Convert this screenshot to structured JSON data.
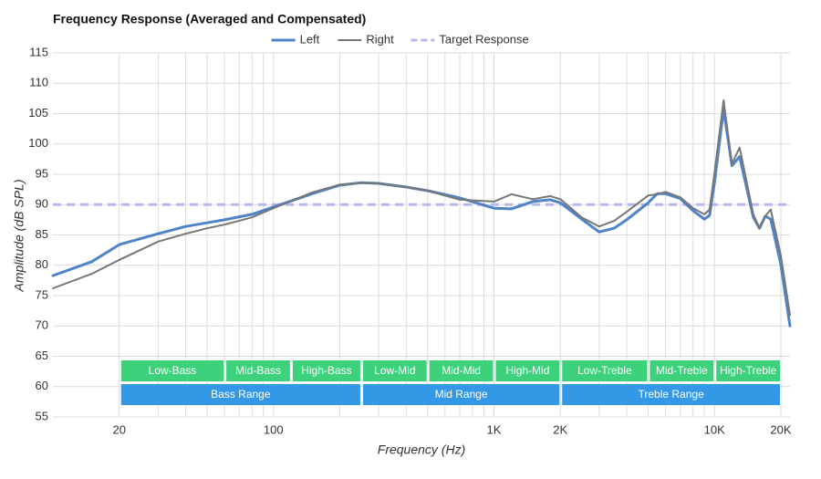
{
  "chart_data": {
    "type": "line",
    "title": "Frequency Response (Averaged and Compensated)",
    "x_label": "Frequency (Hz)",
    "y_label": "Amplitude (dB SPL)",
    "x_scale": "log",
    "xlim": [
      10,
      22000
    ],
    "ylim": [
      55,
      115
    ],
    "yticks": [
      55,
      60,
      65,
      70,
      75,
      80,
      85,
      90,
      95,
      100,
      105,
      110,
      115
    ],
    "xticks": [
      20,
      100,
      {
        "value": 1000,
        "label": "1K"
      },
      {
        "value": 2000,
        "label": "2K"
      },
      {
        "value": 10000,
        "label": "10K"
      },
      {
        "value": 20000,
        "label": "20K"
      }
    ],
    "xgrid": [
      20,
      30,
      40,
      50,
      60,
      70,
      80,
      90,
      100,
      200,
      300,
      400,
      500,
      600,
      700,
      800,
      900,
      1000,
      2000,
      3000,
      4000,
      5000,
      6000,
      7000,
      8000,
      9000,
      10000,
      20000
    ],
    "grid": true,
    "legend": "top",
    "x": [
      10,
      15,
      20,
      30,
      40,
      50,
      60,
      80,
      100,
      150,
      200,
      250,
      300,
      400,
      500,
      700,
      1000,
      1200,
      1500,
      1800,
      2000,
      2500,
      3000,
      3500,
      4000,
      5000,
      5500,
      6000,
      7000,
      8000,
      9000,
      9500,
      10000,
      11000,
      12000,
      13000,
      15000,
      16000,
      17000,
      18000,
      20000,
      22000
    ],
    "series": [
      {
        "name": "Left",
        "color": "#4f84c8",
        "width": 3,
        "values": [
          78.3,
          80.6,
          83.4,
          85.2,
          86.4,
          87.0,
          87.5,
          88.4,
          89.6,
          91.8,
          93.2,
          93.6,
          93.5,
          92.9,
          92.3,
          91.1,
          89.4,
          89.3,
          90.5,
          90.8,
          90.3,
          87.6,
          85.5,
          86.1,
          87.5,
          90.3,
          91.8,
          91.8,
          91.0,
          89.0,
          87.6,
          88.2,
          93.6,
          105.7,
          96.4,
          97.9,
          87.9,
          86.1,
          88.1,
          87.6,
          80.1,
          70.0
        ]
      },
      {
        "name": "Right",
        "color": "#777777",
        "width": 2,
        "values": [
          76.2,
          78.6,
          80.9,
          83.9,
          85.2,
          86.1,
          86.7,
          87.9,
          89.4,
          92.0,
          93.3,
          93.6,
          93.5,
          92.9,
          92.3,
          90.8,
          90.5,
          91.7,
          90.9,
          91.4,
          90.9,
          87.9,
          86.4,
          87.3,
          88.8,
          91.5,
          91.7,
          92.1,
          91.2,
          89.4,
          88.4,
          89.2,
          95.2,
          107.2,
          96.7,
          99.4,
          88.4,
          86.1,
          88.1,
          89.2,
          81.6,
          71.8
        ]
      },
      {
        "name": "Target Response",
        "color": "#b8b8f0",
        "width": 3,
        "dashed": true,
        "x": [
          10,
          22000
        ],
        "values": [
          90,
          90
        ]
      }
    ],
    "ranges": [
      {
        "label": "Low-Bass",
        "from": 20,
        "to": 60,
        "row": 1,
        "color": "#3dd17c"
      },
      {
        "label": "Mid-Bass",
        "from": 60,
        "to": 120,
        "row": 1,
        "color": "#3dd17c"
      },
      {
        "label": "High-Bass",
        "from": 120,
        "to": 250,
        "row": 1,
        "color": "#3dd17c"
      },
      {
        "label": "Low-Mid",
        "from": 250,
        "to": 500,
        "row": 1,
        "color": "#3dd17c"
      },
      {
        "label": "Mid-Mid",
        "from": 500,
        "to": 1000,
        "row": 1,
        "color": "#3dd17c"
      },
      {
        "label": "High-Mid",
        "from": 1000,
        "to": 2000,
        "row": 1,
        "color": "#3dd17c"
      },
      {
        "label": "Low-Treble",
        "from": 2000,
        "to": 5000,
        "row": 1,
        "color": "#3dd17c"
      },
      {
        "label": "Mid-Treble",
        "from": 5000,
        "to": 10000,
        "row": 1,
        "color": "#3dd17c"
      },
      {
        "label": "High-Treble",
        "from": 10000,
        "to": 20000,
        "row": 1,
        "color": "#3dd17c"
      },
      {
        "label": "Bass Range",
        "from": 20,
        "to": 250,
        "row": 2,
        "color": "#3399e6"
      },
      {
        "label": "Mid Range",
        "from": 250,
        "to": 2000,
        "row": 2,
        "color": "#3399e6"
      },
      {
        "label": "Treble Range",
        "from": 2000,
        "to": 20000,
        "row": 2,
        "color": "#3399e6"
      }
    ]
  }
}
